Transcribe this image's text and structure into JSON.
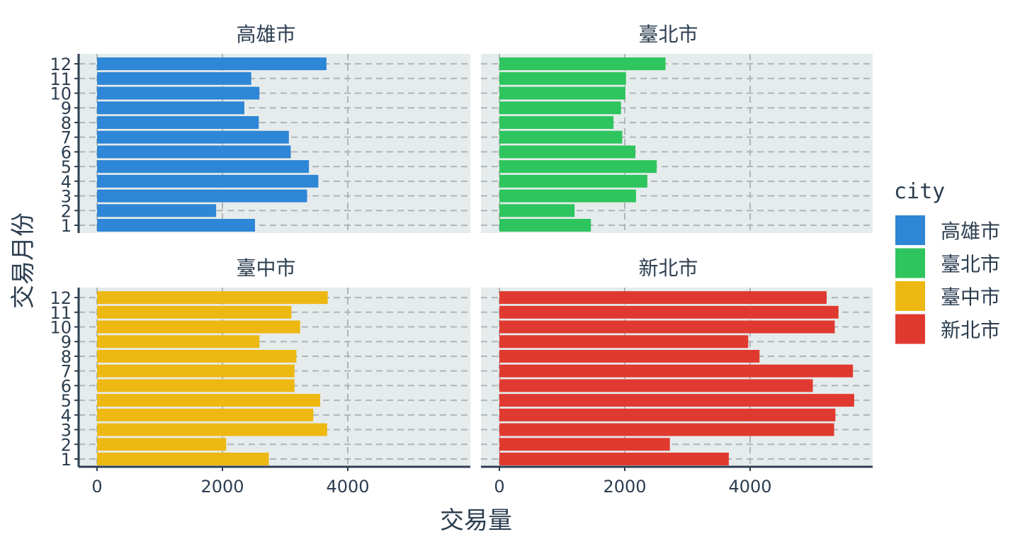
{
  "chart_data": {
    "type": "bar",
    "orientation": "horizontal",
    "xlabel": "交易量",
    "ylabel": "交易月份",
    "x_ticks": [
      0,
      2000,
      4000
    ],
    "xlim": [
      0,
      5800
    ],
    "categories": [
      "1",
      "2",
      "3",
      "4",
      "5",
      "6",
      "7",
      "8",
      "9",
      "10",
      "11",
      "12"
    ],
    "grid": true,
    "legend": {
      "title": "city",
      "position": "right",
      "entries": [
        "高雄市",
        "臺北市",
        "臺中市",
        "新北市"
      ]
    },
    "facets": [
      {
        "name": "高雄市",
        "color": "#2e86d6",
        "values": [
          2520,
          1900,
          3350,
          3530,
          3380,
          3090,
          3060,
          2580,
          2350,
          2590,
          2460,
          3660
        ]
      },
      {
        "name": "臺北市",
        "color": "#2ec55e",
        "values": [
          1460,
          1200,
          2180,
          2360,
          2510,
          2170,
          1960,
          1820,
          1940,
          2010,
          2020,
          2650
        ]
      },
      {
        "name": "臺中市",
        "color": "#edb812",
        "values": [
          2740,
          2060,
          3670,
          3450,
          3560,
          3150,
          3150,
          3180,
          2590,
          3240,
          3100,
          3680
        ]
      },
      {
        "name": "新北市",
        "color": "#e03a30",
        "values": [
          3660,
          2720,
          5340,
          5360,
          5660,
          5000,
          5640,
          4150,
          3970,
          5350,
          5410,
          5220
        ]
      }
    ]
  }
}
